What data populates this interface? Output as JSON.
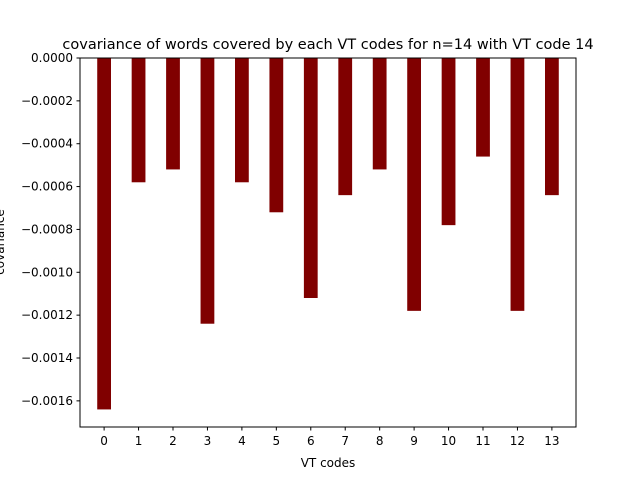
{
  "chart_data": {
    "type": "bar",
    "title": "covariance of words covered by each VT codes for n=14 with VT code 14",
    "xlabel": "VT codes",
    "ylabel": "covariance",
    "categories": [
      "0",
      "1",
      "2",
      "3",
      "4",
      "5",
      "6",
      "7",
      "8",
      "9",
      "10",
      "11",
      "12",
      "13"
    ],
    "values": [
      -0.00164,
      -0.00058,
      -0.00052,
      -0.00124,
      -0.00058,
      -0.00072,
      -0.00112,
      -0.00064,
      -0.00052,
      -0.00118,
      -0.00078,
      -0.00046,
      -0.00118,
      -0.00064
    ],
    "ylim": [
      -0.001722,
      0.0
    ],
    "yticks": [
      0.0,
      -0.0002,
      -0.0004,
      -0.0006,
      -0.0008,
      -0.001,
      -0.0012,
      -0.0014,
      -0.0016
    ],
    "ytick_labels": [
      "0.0000",
      "−0.0002",
      "−0.0004",
      "−0.0006",
      "−0.0008",
      "−0.0010",
      "−0.0012",
      "−0.0014",
      "−0.0016"
    ],
    "bar_color": "#800000",
    "grid": false,
    "legend": "none"
  }
}
